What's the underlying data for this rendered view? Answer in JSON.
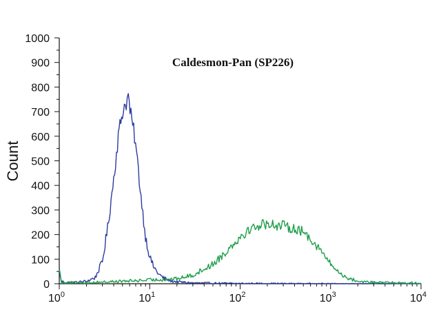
{
  "chart_data": {
    "type": "line",
    "title": "Caldesmon-Pan (SP226)",
    "xlabel": "",
    "ylabel": "Count",
    "x_scale": "log",
    "xlim": [
      1,
      10000
    ],
    "ylim": [
      0,
      1000
    ],
    "grid": false,
    "legend": "none",
    "y_ticks": [
      "0",
      "100",
      "200",
      "300",
      "400",
      "500",
      "600",
      "700",
      "800",
      "900",
      "1000"
    ],
    "x_ticks": [
      {
        "value": 1,
        "base": "10",
        "exp": "0"
      },
      {
        "value": 10,
        "base": "10",
        "exp": "1"
      },
      {
        "value": 100,
        "base": "10",
        "exp": "2"
      },
      {
        "value": 1000,
        "base": "10",
        "exp": "3"
      },
      {
        "value": 10000,
        "base": "10",
        "exp": "4"
      }
    ],
    "series": [
      {
        "color": "#2b3a9e",
        "x": [
          1.0,
          1.05,
          1.2,
          1.5,
          2.0,
          2.5,
          3.0,
          3.5,
          4.0,
          4.5,
          5.0,
          5.5,
          5.8,
          6.2,
          6.8,
          7.5,
          8.2,
          9.0,
          10.0,
          11.0,
          12.5,
          14.0,
          16.0,
          18.0,
          20.0,
          25.0,
          30.0,
          50.0,
          100.0,
          1000.0,
          10000.0
        ],
        "y": [
          60,
          10,
          5,
          5,
          10,
          25,
          90,
          250,
          430,
          600,
          700,
          740,
          760,
          680,
          600,
          460,
          320,
          190,
          110,
          70,
          40,
          25,
          15,
          10,
          8,
          5,
          3,
          2,
          1,
          0,
          0
        ]
      },
      {
        "color": "#1e9e4a",
        "x": [
          1.0,
          1.05,
          2.0,
          5.0,
          10.0,
          20.0,
          30.0,
          40.0,
          50.0,
          70.0,
          90.0,
          120.0,
          150.0,
          200.0,
          300.0,
          400.0,
          500.0,
          600.0,
          800.0,
          1000.0,
          1200.0,
          1500.0,
          2000.0,
          3000.0,
          10000.0
        ],
        "y": [
          70,
          5,
          5,
          10,
          15,
          20,
          35,
          60,
          80,
          130,
          175,
          215,
          235,
          245,
          235,
          225,
          210,
          185,
          130,
          80,
          50,
          25,
          10,
          5,
          3
        ]
      }
    ]
  }
}
